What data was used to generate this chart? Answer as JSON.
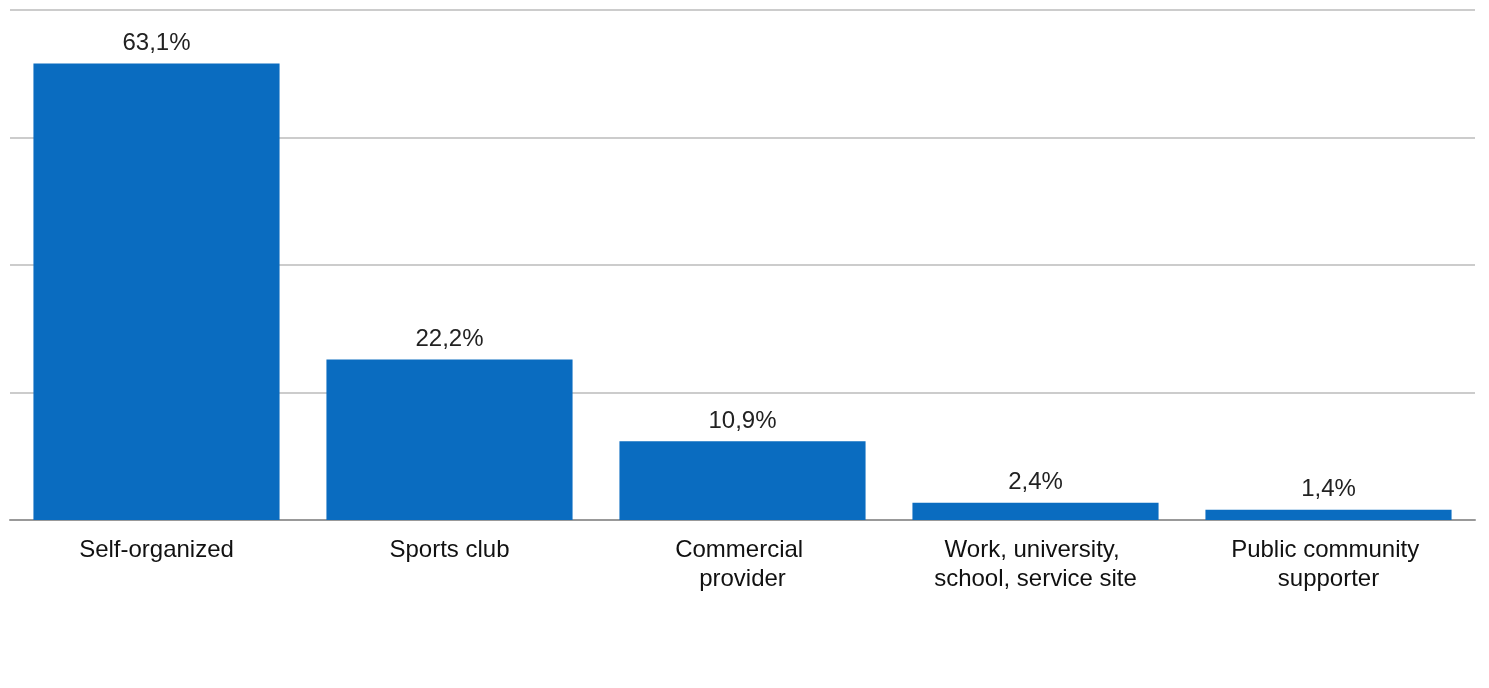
{
  "chart_data": {
    "type": "bar",
    "categories": [
      "Self-organized",
      "Sports club",
      "Commercial provider",
      "Work, university, school, service site",
      "Public community supporter"
    ],
    "values": [
      63.1,
      22.2,
      10.9,
      2.4,
      1.4
    ],
    "value_labels": [
      "63,1%",
      "22,2%",
      "10,9%",
      "2,4%",
      "1,4%"
    ],
    "color": "#0a6cc0",
    "ylim": [
      0,
      70.5
    ],
    "yticks": [
      {
        "value": 0,
        "label": null
      },
      {
        "value": 17.6,
        "label": null
      },
      {
        "value": 35.3,
        "label": null
      },
      {
        "value": 52.9,
        "label": null
      },
      {
        "value": 70.5,
        "label": null
      }
    ],
    "grid": "y",
    "tick_labels": "x"
  }
}
